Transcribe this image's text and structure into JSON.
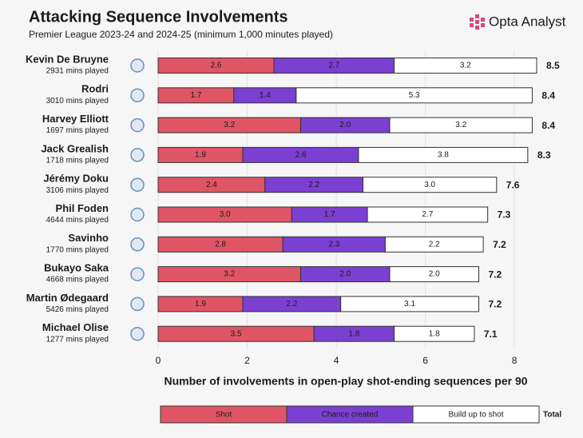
{
  "chart_data": {
    "type": "stacked-barh",
    "title": "Attacking Sequence Involvements",
    "subtitle": "Premier League 2023-24 and 2024-25 (minimum 1,000 minutes played)",
    "brand": "Opta Analyst",
    "x_label": "Number of involvements in open-play shot-ending sequences per 90",
    "categories": [
      "Kevin De Bruyne",
      "Rodri",
      "Harvey Elliott",
      "Jack Grealish",
      "Jérémy Doku",
      "Phil Foden",
      "Savinho",
      "Bukayo Saka",
      "Martin Ødegaard",
      "Michael Olise"
    ],
    "subtitles": [
      "2931 mins played",
      "3010 mins played",
      "1697 mins played",
      "1718 mins played",
      "3106 mins played",
      "4644 mins played",
      "1770 mins played",
      "4668 mins played",
      "5426 mins played",
      "1277 mins played"
    ],
    "series": [
      {
        "name": "Shot",
        "color": "#e05565",
        "text_color": "#fbe3e6",
        "values": [
          2.6,
          1.7,
          3.2,
          1.9,
          2.4,
          3.0,
          2.8,
          3.2,
          1.9,
          3.5
        ],
        "value_labels": [
          "2.6",
          "1.7",
          "3.2",
          "1.9",
          "2.4",
          "3.0",
          "2.8",
          "3.2",
          "1.9",
          "3.5"
        ]
      },
      {
        "name": "Chance created",
        "color": "#7b40d1",
        "text_color": "#ece2fb",
        "values": [
          2.7,
          1.4,
          2.0,
          2.6,
          2.2,
          1.7,
          2.3,
          2.0,
          2.2,
          1.8
        ],
        "value_labels": [
          "2.7",
          "1.4",
          "2.0",
          "2.6",
          "2.2",
          "1.7",
          "2.3",
          "2.0",
          "2.2",
          "1.8"
        ]
      },
      {
        "name": "Build up to shot",
        "color": "#ffffff",
        "text_color": "#333333",
        "values": [
          3.2,
          5.3,
          3.2,
          3.8,
          3.0,
          2.7,
          2.2,
          2.0,
          3.1,
          1.8
        ],
        "value_labels": [
          "3.2",
          "5.3",
          "3.2",
          "3.8",
          "3.0",
          "2.7",
          "2.2",
          "2.0",
          "3.1",
          "1.8"
        ]
      }
    ],
    "totals": [
      8.5,
      8.4,
      8.4,
      8.3,
      7.6,
      7.3,
      7.2,
      7.2,
      7.2,
      7.1
    ],
    "total_label": "Total",
    "xlim": [
      0,
      8.5
    ],
    "xticks": [
      0,
      2,
      4,
      6,
      8
    ],
    "grid": true
  }
}
